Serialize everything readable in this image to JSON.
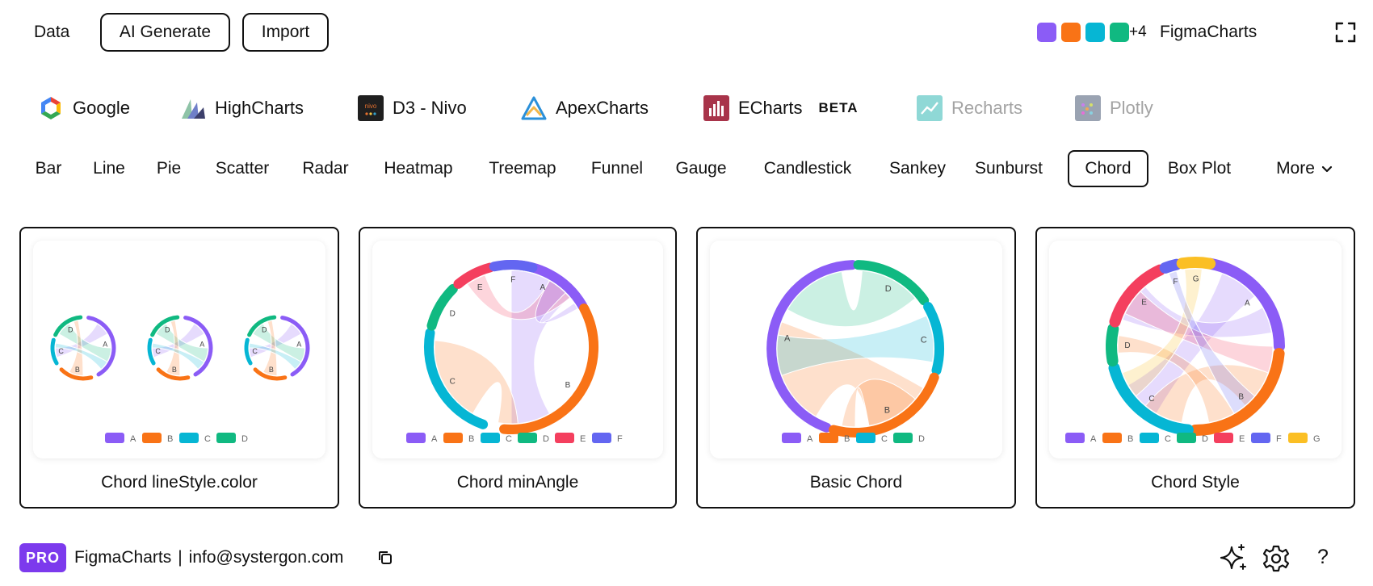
{
  "topbar": {
    "data_label": "Data",
    "ai_generate_label": "AI Generate",
    "import_label": "Import",
    "swatch_colors": [
      "#8b5cf6",
      "#f97316",
      "#06b6d4",
      "#10b981"
    ],
    "extra_count": "+4",
    "brand": "FigmaCharts"
  },
  "libraries": [
    {
      "name": "Google",
      "icon": "google-logo-icon",
      "enabled": true
    },
    {
      "name": "HighCharts",
      "icon": "highcharts-logo-icon",
      "enabled": true
    },
    {
      "name": "D3 - Nivo",
      "icon": "nivo-logo-icon",
      "enabled": true
    },
    {
      "name": "ApexCharts",
      "icon": "apexcharts-logo-icon",
      "enabled": true
    },
    {
      "name": "ECharts",
      "icon": "echarts-logo-icon",
      "enabled": true,
      "badge": "BETA"
    },
    {
      "name": "Recharts",
      "icon": "recharts-logo-icon",
      "enabled": false
    },
    {
      "name": "Plotly",
      "icon": "plotly-logo-icon",
      "enabled": false
    }
  ],
  "tabs": [
    "Bar",
    "Line",
    "Pie",
    "Scatter",
    "Radar",
    "Heatmap",
    "Treemap",
    "Funnel",
    "Gauge",
    "Candlestick",
    "Sankey",
    "Sunburst",
    "Chord",
    "Box Plot",
    "More"
  ],
  "active_tab": "Chord",
  "palette": {
    "A": "#8b5cf6",
    "B": "#f97316",
    "C": "#06b6d4",
    "D": "#10b981",
    "E": "#f43f5e",
    "F": "#6366f1",
    "G": "#fbbf24"
  },
  "cards": [
    {
      "title": "Chord lineStyle.color",
      "legend": [
        "A",
        "B",
        "C",
        "D"
      ]
    },
    {
      "title": "Chord minAngle",
      "legend": [
        "A",
        "B",
        "C",
        "D",
        "E",
        "F"
      ]
    },
    {
      "title": "Basic Chord",
      "legend": [
        "A",
        "B",
        "C",
        "D"
      ]
    },
    {
      "title": "Chord Style",
      "legend": [
        "A",
        "B",
        "C",
        "D",
        "E",
        "F",
        "G"
      ]
    }
  ],
  "footer": {
    "pro_badge": "PRO",
    "brand": "FigmaCharts",
    "separator": "|",
    "email": "info@systergon.com",
    "help": "?"
  }
}
